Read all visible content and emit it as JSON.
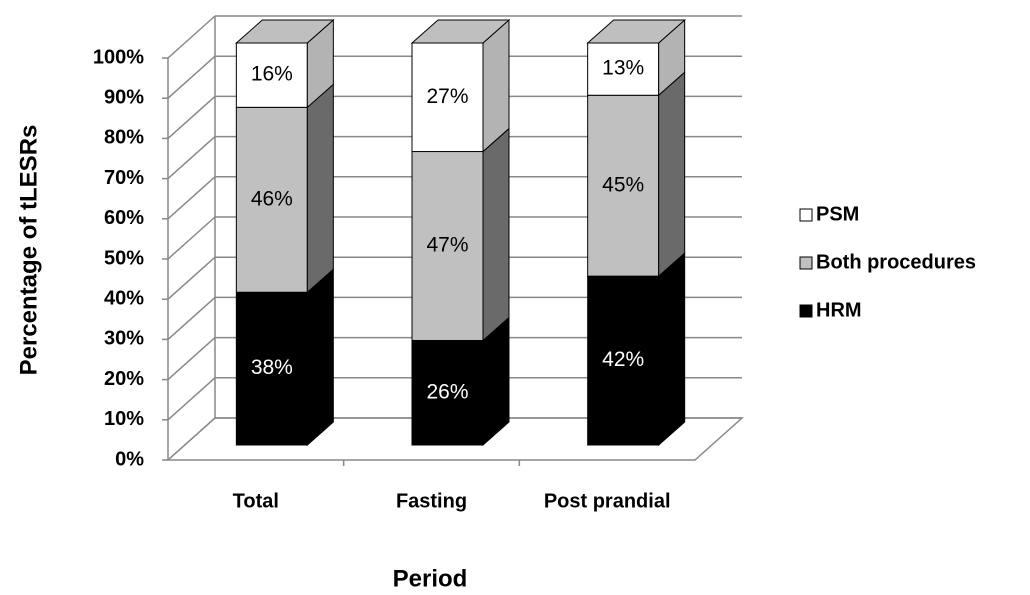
{
  "chart_data": {
    "type": "stacked_bar_3d",
    "x_label": "Period",
    "y_label": "Percentage of tLESRs",
    "categories": [
      "Total",
      "Fasting",
      "Post prandial"
    ],
    "series": [
      {
        "name": "HRM",
        "color": "#000000",
        "values": [
          38,
          26,
          42
        ],
        "value_labels": [
          "38%",
          "26%",
          "42%"
        ]
      },
      {
        "name": "Both procedures",
        "color": "#c0c0c0",
        "values": [
          46,
          47,
          45
        ],
        "value_labels": [
          "46%",
          "47%",
          "45%"
        ]
      },
      {
        "name": "PSM",
        "color": "#ffffff",
        "values": [
          16,
          27,
          13
        ],
        "value_labels": [
          "16%",
          "27%",
          "13%"
        ]
      }
    ],
    "ylim": [
      0,
      100
    ],
    "yticks": [
      {
        "value": 0,
        "label": "0%"
      },
      {
        "value": 10,
        "label": "10%"
      },
      {
        "value": 20,
        "label": "20%"
      },
      {
        "value": 30,
        "label": "30%"
      },
      {
        "value": 40,
        "label": "40%"
      },
      {
        "value": 50,
        "label": "50%"
      },
      {
        "value": 60,
        "label": "60%"
      },
      {
        "value": 70,
        "label": "70%"
      },
      {
        "value": 80,
        "label": "80%"
      },
      {
        "value": 90,
        "label": "90%"
      },
      {
        "value": 100,
        "label": "100%"
      }
    ],
    "grid": true,
    "legend": "right"
  }
}
